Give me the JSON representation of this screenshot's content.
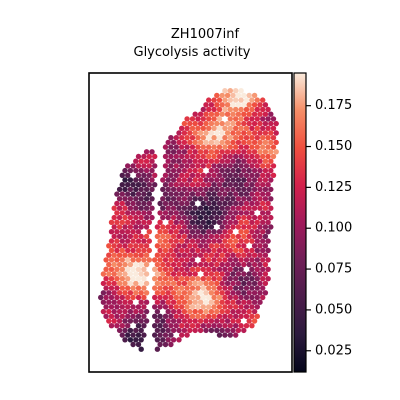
{
  "chart_data": {
    "type": "heatmap",
    "title": "ZH1007inf",
    "subtitle": "Glycolysis activity",
    "xlabel": "",
    "ylabel": "",
    "colormap": "rocket",
    "colorbar": {
      "range": [
        0.012,
        0.195
      ],
      "ticks": [
        0.025,
        0.05,
        0.075,
        0.1,
        0.125,
        0.15,
        0.175
      ],
      "tick_labels": [
        "0.025",
        "0.050",
        "0.075",
        "0.100",
        "0.125",
        "0.150",
        "0.175"
      ]
    },
    "grid": false,
    "legend": "none",
    "spot_count": 960
  }
}
